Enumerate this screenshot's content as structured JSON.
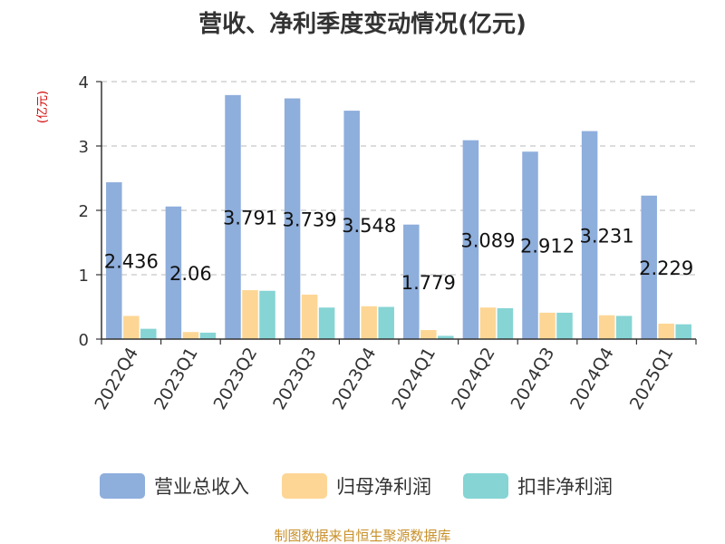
{
  "chart_data": {
    "type": "bar",
    "title": "营收、净利季度变动情况(亿元)",
    "unit_label": "(亿元)",
    "categories": [
      "2022Q4",
      "2023Q1",
      "2023Q2",
      "2023Q3",
      "2023Q4",
      "2024Q1",
      "2024Q2",
      "2024Q3",
      "2024Q4",
      "2025Q1"
    ],
    "series": [
      {
        "name": "营业总收入",
        "color": "#8eaedc",
        "values": [
          2.436,
          2.06,
          3.791,
          3.739,
          3.548,
          1.779,
          3.089,
          2.912,
          3.231,
          2.229
        ],
        "labels": [
          "2.436",
          "2.06",
          "3.791",
          "3.739",
          "3.548",
          "1.779",
          "3.089",
          "2.912",
          "3.231",
          "2.229"
        ]
      },
      {
        "name": "归母净利润",
        "color": "#fdd695",
        "values": [
          0.36,
          0.11,
          0.76,
          0.69,
          0.51,
          0.14,
          0.49,
          0.41,
          0.37,
          0.24
        ]
      },
      {
        "name": "扣非净利润",
        "color": "#86d4d4",
        "values": [
          0.16,
          0.1,
          0.75,
          0.49,
          0.5,
          0.05,
          0.48,
          0.41,
          0.36,
          0.23
        ]
      }
    ],
    "ylim": [
      0,
      4
    ],
    "yticks": [
      "0",
      "1",
      "2",
      "3",
      "4"
    ],
    "grid": true,
    "legend_position": "bottom"
  },
  "footer": {
    "source": "制图数据来自恒生聚源数据库"
  }
}
